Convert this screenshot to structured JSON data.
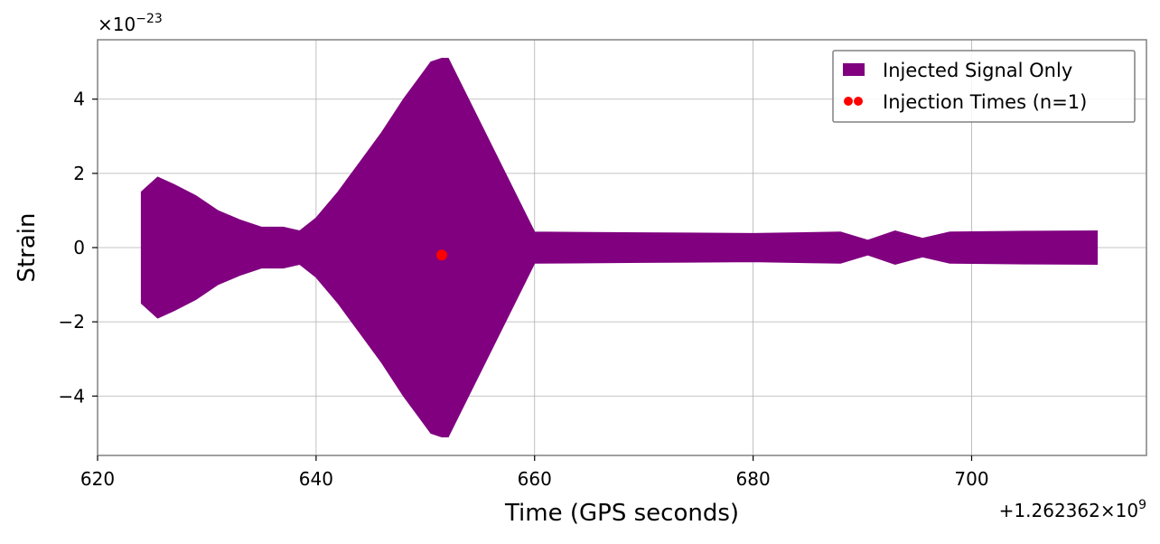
{
  "chart_data": {
    "type": "line",
    "title": "",
    "xlabel": "Time (GPS seconds)",
    "ylabel": "Strain",
    "x_offset_label": "+1.262362×10",
    "x_offset_exponent": "9",
    "y_multiplier_label": "×10",
    "y_multiplier_exponent": "−23",
    "xlim": [
      620,
      716
    ],
    "ylim": [
      -5.6,
      5.6
    ],
    "x_ticks": [
      620,
      640,
      660,
      680,
      700
    ],
    "x_tick_labels": [
      "620",
      "640",
      "660",
      "680",
      "700"
    ],
    "y_ticks": [
      -4,
      -2,
      0,
      2,
      4
    ],
    "y_tick_labels": [
      "−4",
      "−2",
      "0",
      "2",
      "4"
    ],
    "grid": true,
    "legend_position": "upper-right",
    "series": [
      {
        "name": "Injected Signal Only",
        "color": "#800080",
        "kind": "oscillating-strain-envelope",
        "x": [
          624.0,
          625.5,
          627,
          629,
          631,
          633,
          635,
          637,
          638.5,
          640,
          642,
          644,
          646,
          648,
          649.5,
          650.5,
          651.5,
          652.1,
          660,
          670,
          680,
          688,
          690.5,
          693,
          695.5,
          698,
          705,
          711.5
        ],
        "upper": [
          1.5,
          1.9,
          1.7,
          1.4,
          1.0,
          0.75,
          0.55,
          0.55,
          0.45,
          0.8,
          1.5,
          2.3,
          3.1,
          4.0,
          4.6,
          5.0,
          5.1,
          5.1,
          0.42,
          0.4,
          0.38,
          0.42,
          0.2,
          0.45,
          0.25,
          0.42,
          0.44,
          0.45
        ],
        "lower": [
          -1.5,
          -1.9,
          -1.7,
          -1.4,
          -1.0,
          -0.75,
          -0.55,
          -0.55,
          -0.45,
          -0.8,
          -1.5,
          -2.3,
          -3.1,
          -4.0,
          -4.6,
          -5.0,
          -5.1,
          -5.1,
          -0.42,
          -0.4,
          -0.38,
          -0.42,
          -0.2,
          -0.45,
          -0.25,
          -0.42,
          -0.44,
          -0.45
        ]
      },
      {
        "name": "Injection Times (n=1)",
        "color": "#ff0000",
        "kind": "marker",
        "x": [
          651.5
        ],
        "y": [
          -0.2
        ]
      }
    ]
  }
}
